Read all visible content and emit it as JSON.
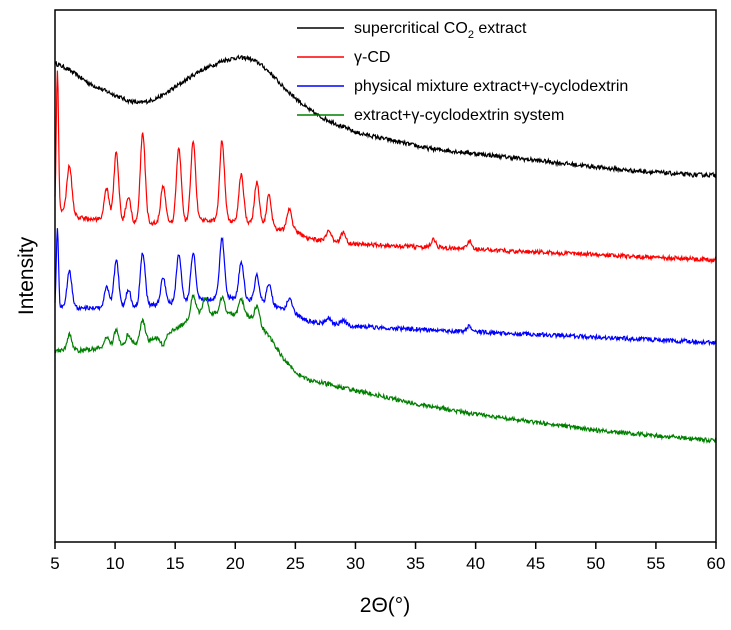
{
  "chart_data": {
    "type": "line",
    "xlabel": "2Θ(°)",
    "ylabel": "Intensity",
    "xlim": [
      5,
      60
    ],
    "x_ticks": [
      "5",
      "10",
      "15",
      "20",
      "25",
      "30",
      "35",
      "40",
      "45",
      "50",
      "55",
      "60"
    ],
    "grid": false,
    "legend_position": "top-right",
    "y_ticks_shown": false,
    "series": [
      {
        "name": "supercritical CO2 extract",
        "legend_parts": [
          "supercritical CO",
          "2",
          " extract"
        ],
        "color": "#000000",
        "points": [
          [
            5,
            0.9
          ],
          [
            6,
            0.89
          ],
          [
            7,
            0.875
          ],
          [
            8,
            0.86
          ],
          [
            9,
            0.85
          ],
          [
            10,
            0.84
          ],
          [
            11,
            0.83
          ],
          [
            12,
            0.825
          ],
          [
            13,
            0.83
          ],
          [
            14,
            0.84
          ],
          [
            15,
            0.855
          ],
          [
            16,
            0.87
          ],
          [
            17,
            0.885
          ],
          [
            18,
            0.895
          ],
          [
            19,
            0.905
          ],
          [
            20,
            0.91
          ],
          [
            21,
            0.91
          ],
          [
            22,
            0.9
          ],
          [
            23,
            0.88
          ],
          [
            24,
            0.855
          ],
          [
            25,
            0.835
          ],
          [
            26,
            0.815
          ],
          [
            27,
            0.8
          ],
          [
            28,
            0.79
          ],
          [
            29,
            0.78
          ],
          [
            30,
            0.77
          ],
          [
            32,
            0.76
          ],
          [
            34,
            0.75
          ],
          [
            36,
            0.74
          ],
          [
            38,
            0.735
          ],
          [
            40,
            0.73
          ],
          [
            42,
            0.725
          ],
          [
            44,
            0.72
          ],
          [
            46,
            0.715
          ],
          [
            48,
            0.71
          ],
          [
            50,
            0.705
          ],
          [
            52,
            0.7
          ],
          [
            55,
            0.695
          ],
          [
            58,
            0.69
          ],
          [
            60,
            0.69
          ]
        ]
      },
      {
        "name": "γ-CD",
        "legend_parts": [
          "γ-CD"
        ],
        "color": "#ff0000",
        "base": [
          [
            5,
            0.63
          ],
          [
            7,
            0.61
          ],
          [
            9,
            0.605
          ],
          [
            11,
            0.6
          ],
          [
            13,
            0.6
          ],
          [
            15,
            0.6
          ],
          [
            17,
            0.605
          ],
          [
            19,
            0.605
          ],
          [
            21,
            0.6
          ],
          [
            23,
            0.59
          ],
          [
            25,
            0.585
          ],
          [
            26,
            0.57
          ],
          [
            28,
            0.565
          ],
          [
            30,
            0.56
          ],
          [
            35,
            0.555
          ],
          [
            40,
            0.55
          ],
          [
            45,
            0.545
          ],
          [
            50,
            0.54
          ],
          [
            55,
            0.535
          ],
          [
            60,
            0.53
          ]
        ],
        "peaks": [
          [
            5.2,
            0.26
          ],
          [
            6.2,
            0.09
          ],
          [
            9.3,
            0.06
          ],
          [
            10.1,
            0.13
          ],
          [
            11.1,
            0.05
          ],
          [
            12.3,
            0.17
          ],
          [
            14,
            0.07
          ],
          [
            15.3,
            0.14
          ],
          [
            16.5,
            0.15
          ],
          [
            18.9,
            0.15
          ],
          [
            20.5,
            0.09
          ],
          [
            21.8,
            0.08
          ],
          [
            22.8,
            0.06
          ],
          [
            24.5,
            0.04
          ],
          [
            27.8,
            0.02
          ],
          [
            29,
            0.02
          ],
          [
            36.5,
            0.015
          ],
          [
            39.5,
            0.015
          ]
        ]
      },
      {
        "name": "physical mixture extract+γ-cyclodextrin",
        "legend_parts": [
          "physical mixture extract+γ-cyclodextrin"
        ],
        "color": "#0000ff",
        "base": [
          [
            5,
            0.44
          ],
          [
            7,
            0.44
          ],
          [
            9,
            0.44
          ],
          [
            11,
            0.44
          ],
          [
            13,
            0.445
          ],
          [
            15,
            0.45
          ],
          [
            17,
            0.455
          ],
          [
            19,
            0.46
          ],
          [
            21,
            0.455
          ],
          [
            23,
            0.445
          ],
          [
            25,
            0.43
          ],
          [
            26,
            0.415
          ],
          [
            28,
            0.41
          ],
          [
            30,
            0.405
          ],
          [
            35,
            0.4
          ],
          [
            40,
            0.395
          ],
          [
            45,
            0.39
          ],
          [
            50,
            0.385
          ],
          [
            55,
            0.38
          ],
          [
            60,
            0.375
          ]
        ],
        "peaks": [
          [
            5.2,
            0.15
          ],
          [
            6.2,
            0.07
          ],
          [
            9.3,
            0.04
          ],
          [
            10.1,
            0.09
          ],
          [
            11.1,
            0.035
          ],
          [
            12.3,
            0.1
          ],
          [
            14,
            0.05
          ],
          [
            15.3,
            0.09
          ],
          [
            16.5,
            0.09
          ],
          [
            18.9,
            0.11
          ],
          [
            20.5,
            0.07
          ],
          [
            21.8,
            0.05
          ],
          [
            22.8,
            0.04
          ],
          [
            24.5,
            0.025
          ],
          [
            27.8,
            0.01
          ],
          [
            29,
            0.01
          ],
          [
            39.5,
            0.01
          ]
        ]
      },
      {
        "name": "extract+γ-cyclodextrin system",
        "legend_parts": [
          "extract+γ-cyclodextrin system"
        ],
        "color": "#008000",
        "base": [
          [
            5,
            0.36
          ],
          [
            7,
            0.36
          ],
          [
            9,
            0.365
          ],
          [
            11,
            0.37
          ],
          [
            13,
            0.38
          ],
          [
            15,
            0.4
          ],
          [
            17,
            0.43
          ],
          [
            19,
            0.43
          ],
          [
            21,
            0.425
          ],
          [
            22,
            0.41
          ],
          [
            23,
            0.38
          ],
          [
            24,
            0.345
          ],
          [
            25,
            0.32
          ],
          [
            26,
            0.305
          ],
          [
            28,
            0.295
          ],
          [
            30,
            0.285
          ],
          [
            32,
            0.275
          ],
          [
            35,
            0.26
          ],
          [
            40,
            0.24
          ],
          [
            45,
            0.225
          ],
          [
            50,
            0.21
          ],
          [
            55,
            0.2
          ],
          [
            60,
            0.19
          ]
        ],
        "peaks": [
          [
            6.2,
            0.03
          ],
          [
            9.3,
            0.02
          ],
          [
            10.1,
            0.03
          ],
          [
            11.1,
            0.02
          ],
          [
            12.3,
            0.04
          ],
          [
            14,
            -0.02
          ],
          [
            16.5,
            0.04
          ],
          [
            17.5,
            0.03
          ],
          [
            18.9,
            0.03
          ],
          [
            20.5,
            0.03
          ],
          [
            21.8,
            0.03
          ]
        ]
      }
    ]
  }
}
